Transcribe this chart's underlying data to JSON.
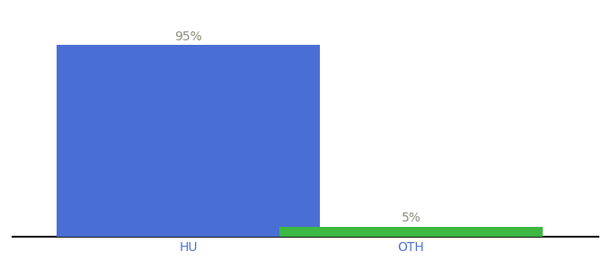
{
  "categories": [
    "HU",
    "OTH"
  ],
  "values": [
    95,
    5
  ],
  "bar_colors": [
    "#4a6fd4",
    "#3cb843"
  ],
  "label_texts": [
    "95%",
    "5%"
  ],
  "ylim": [
    0,
    108
  ],
  "background_color": "#ffffff",
  "bar_width": 0.45,
  "bar_positions": [
    0.3,
    0.68
  ],
  "xlim": [
    0.0,
    1.0
  ],
  "label_fontsize": 10,
  "tick_fontsize": 10,
  "tick_color": "#4a6fd4",
  "label_color": "#888877",
  "axis_line_color": "#111111"
}
